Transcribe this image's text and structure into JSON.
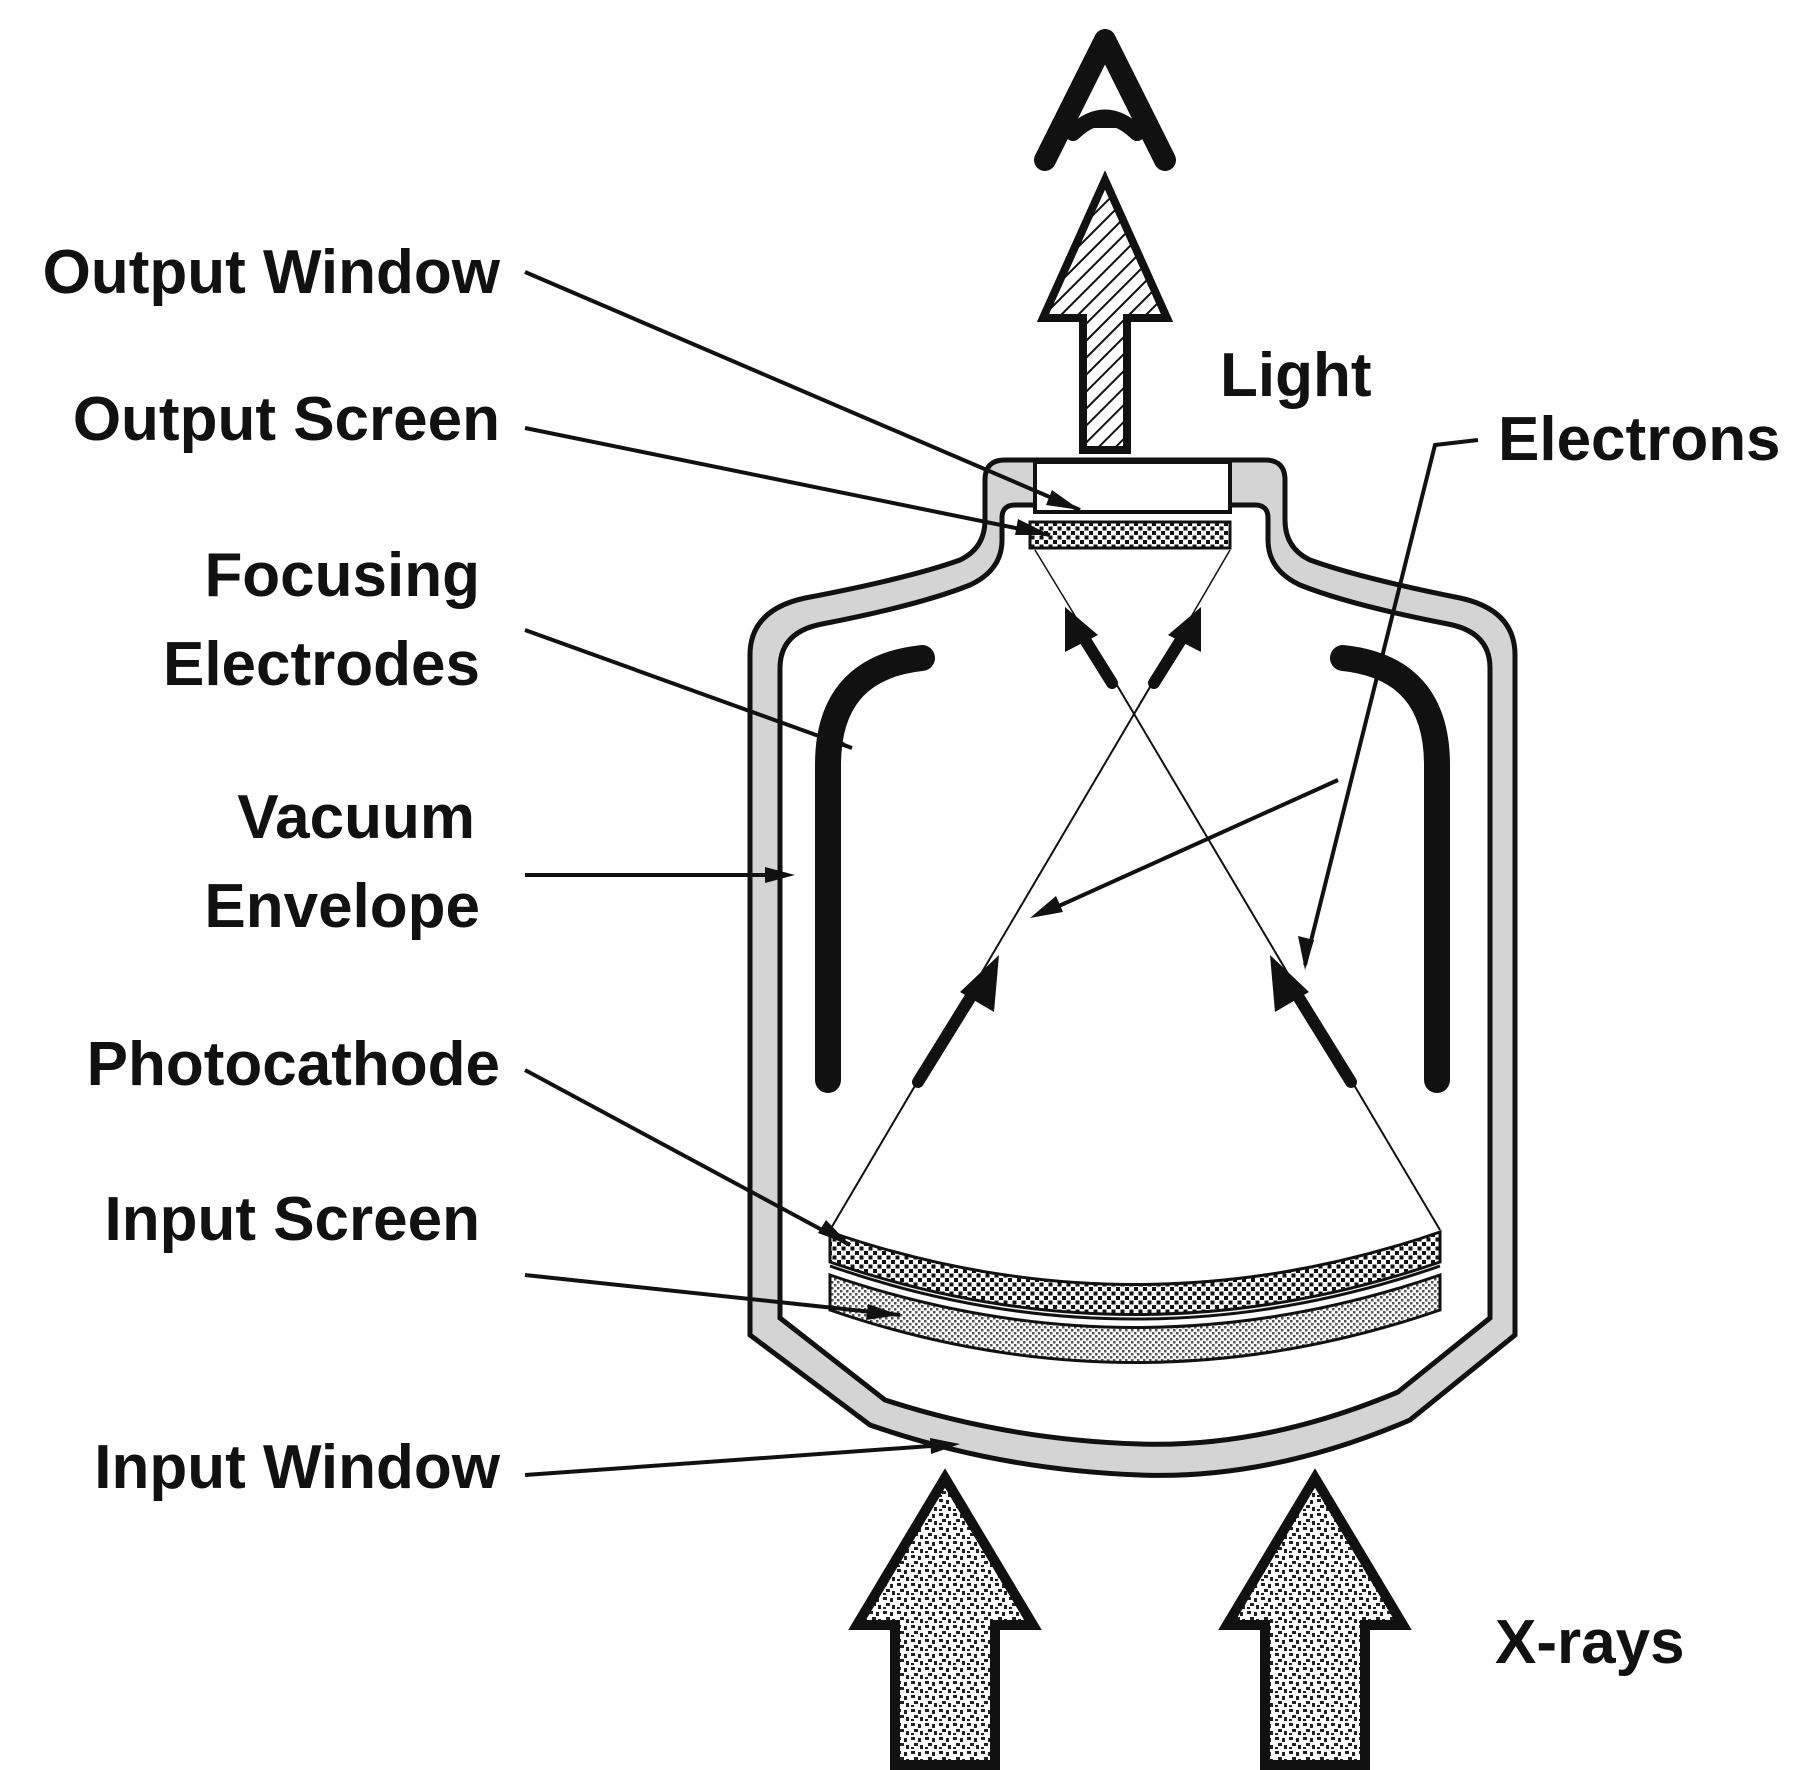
{
  "labels": {
    "output_window": "Output Window",
    "output_screen": "Output Screen",
    "focusing_electrodes_line1": "Focusing",
    "focusing_electrodes_line2": "Electrodes",
    "vacuum_envelope_line1": "Vacuum",
    "vacuum_envelope_line2": "Envelope",
    "photocathode": "Photocathode",
    "input_screen": "Input Screen",
    "input_window": "Input Window",
    "light": "Light",
    "electrons": "Electrons",
    "xrays": "X-rays"
  },
  "colors": {
    "ink": "#111111",
    "envelope_fill": "#d4d4d4",
    "background": "#ffffff"
  },
  "icons": {
    "observer": "eye-icon",
    "light_arrow": "hatched-up-arrow",
    "xray_arrows": "stippled-up-arrow"
  }
}
